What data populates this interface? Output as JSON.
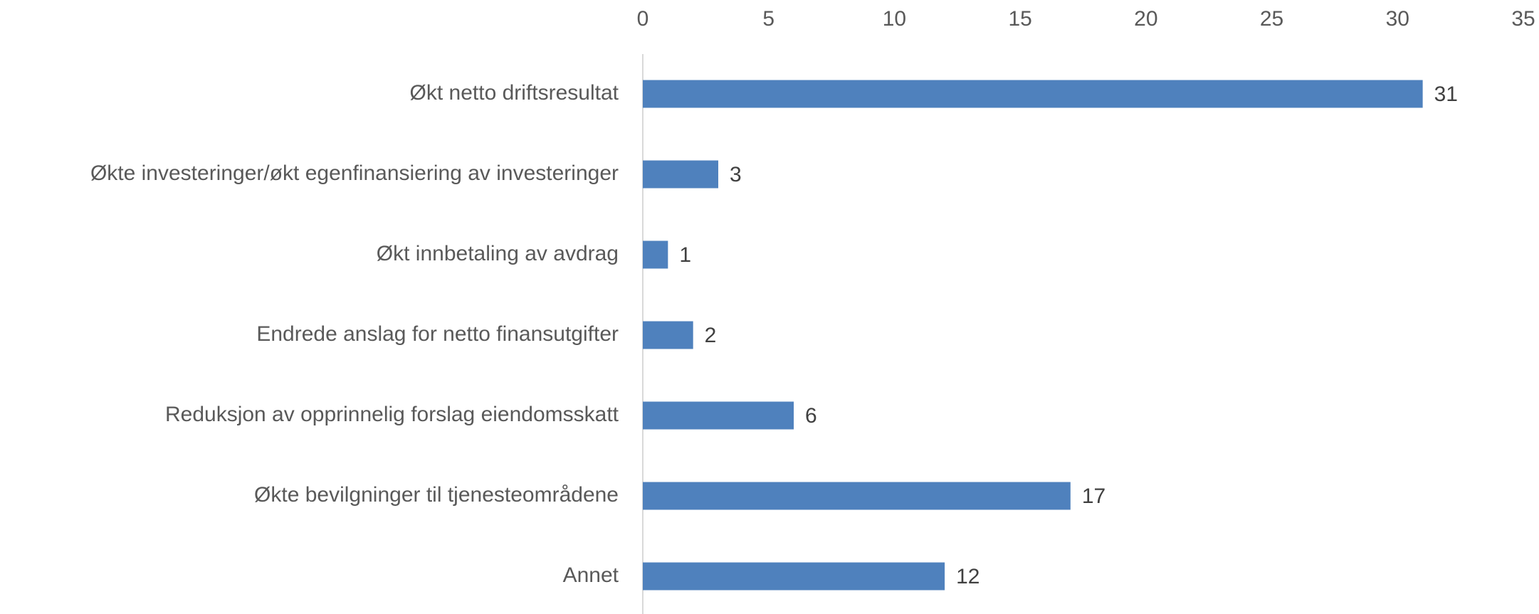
{
  "chart_data": {
    "type": "bar",
    "orientation": "horizontal",
    "categories": [
      "Økt netto driftsresultat",
      "Økte investeringer/økt egenfinansiering av investeringer",
      "Økt innbetaling av avdrag",
      "Endrede anslag for netto finansutgifter",
      "Reduksjon av opprinnelig forslag eiendomsskatt",
      "Økte bevilgninger til tjenesteområdene",
      "Annet"
    ],
    "values": [
      31,
      3,
      1,
      2,
      6,
      17,
      12
    ],
    "color": "#4f81bd",
    "xlim": [
      0,
      35
    ],
    "xticks": [
      0,
      5,
      10,
      15,
      20,
      25,
      30,
      35
    ],
    "grid": false
  }
}
